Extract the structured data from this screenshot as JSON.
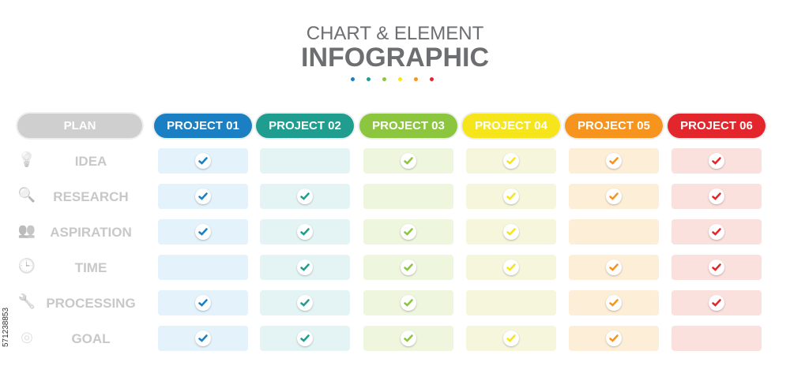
{
  "title": {
    "line1": "CHART & ELEMENT",
    "line2": "INFOGRAPHIC"
  },
  "dots": [
    "#1a7fc3",
    "#1f9e90",
    "#8cc63f",
    "#f7e51b",
    "#f7941d",
    "#e3262b"
  ],
  "plan_label": "PLAN",
  "projects": [
    {
      "label": "PROJECT 01",
      "color": "#1a7fc3",
      "cell": "#e3f2fb"
    },
    {
      "label": "PROJECT 02",
      "color": "#1f9e90",
      "cell": "#e4f4f5"
    },
    {
      "label": "PROJECT 03",
      "color": "#8cc63f",
      "cell": "#eef6de"
    },
    {
      "label": "PROJECT 04",
      "color": "#f7e51b",
      "cell": "#f5f6dc"
    },
    {
      "label": "PROJECT 05",
      "color": "#f7941d",
      "cell": "#fdeed8"
    },
    {
      "label": "PROJECT 06",
      "color": "#e3262b",
      "cell": "#fbe1de"
    }
  ],
  "rows": [
    {
      "label": "IDEA",
      "icon": "lightbulb-icon",
      "checks": [
        true,
        false,
        true,
        true,
        true,
        true
      ]
    },
    {
      "label": "RESEARCH",
      "icon": "magnifier-chart-icon",
      "checks": [
        true,
        true,
        false,
        true,
        true,
        true
      ]
    },
    {
      "label": "ASPIRATION",
      "icon": "people-speech-icon",
      "checks": [
        true,
        true,
        true,
        true,
        false,
        true
      ]
    },
    {
      "label": "TIME",
      "icon": "clock-icon",
      "checks": [
        false,
        true,
        true,
        true,
        true,
        true
      ]
    },
    {
      "label": "PROCESSING",
      "icon": "wrench-icon",
      "checks": [
        true,
        true,
        true,
        false,
        true,
        true
      ]
    },
    {
      "label": "GOAL",
      "icon": "target-icon",
      "checks": [
        true,
        true,
        true,
        true,
        true,
        false
      ]
    }
  ],
  "stock_id": "571238853"
}
